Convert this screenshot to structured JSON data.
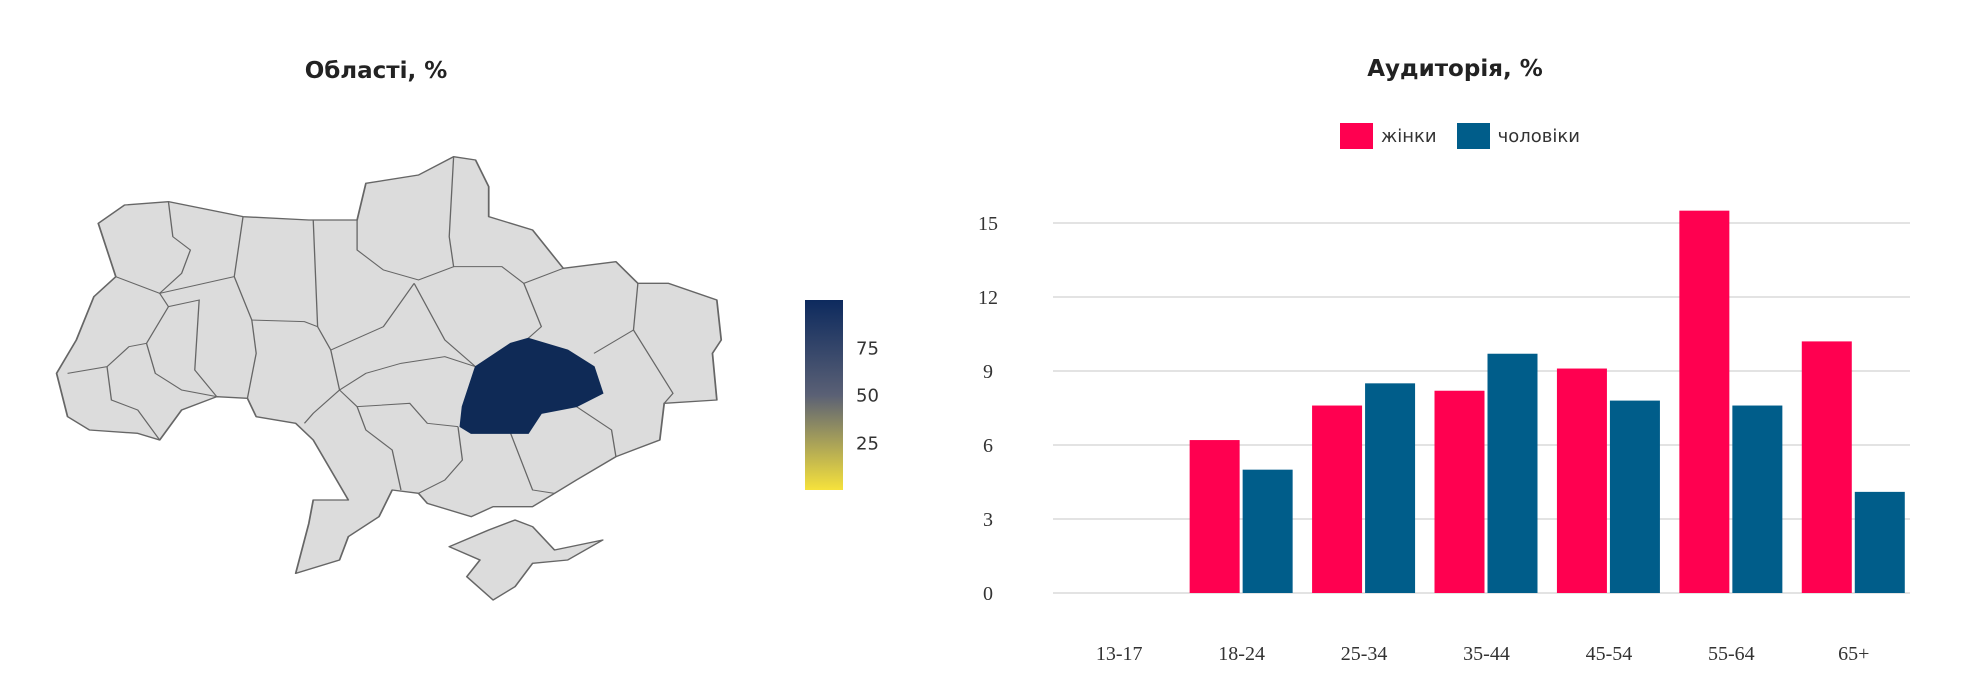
{
  "map_panel": {
    "title": "Області, %",
    "highlight_color": "#0f2a56",
    "base_color": "#dcdcdc",
    "colorbar": {
      "ticks": [
        "75",
        "50",
        "25"
      ],
      "tick_values": [
        75,
        50,
        25
      ],
      "range": [
        0,
        100
      ],
      "colors": [
        "#f6e23c",
        "#0d2a5e"
      ]
    }
  },
  "chart_data": {
    "type": "bar",
    "title": "Аудиторія, %",
    "categories": [
      "13-17",
      "18-24",
      "25-34",
      "35-44",
      "45-54",
      "55-64",
      "65+"
    ],
    "series": [
      {
        "name": "жінки",
        "color": "#ff0050",
        "values": [
          0,
          6.2,
          7.6,
          8.2,
          9.1,
          15.5,
          10.2
        ]
      },
      {
        "name": "чоловіки",
        "color": "#005d8a",
        "values": [
          0,
          5.0,
          8.5,
          9.7,
          7.8,
          7.6,
          4.1
        ]
      }
    ],
    "ylim": [
      0,
      16
    ],
    "yticks": [
      0,
      3,
      6,
      9,
      12,
      15
    ],
    "grid": true,
    "legend": "top"
  }
}
